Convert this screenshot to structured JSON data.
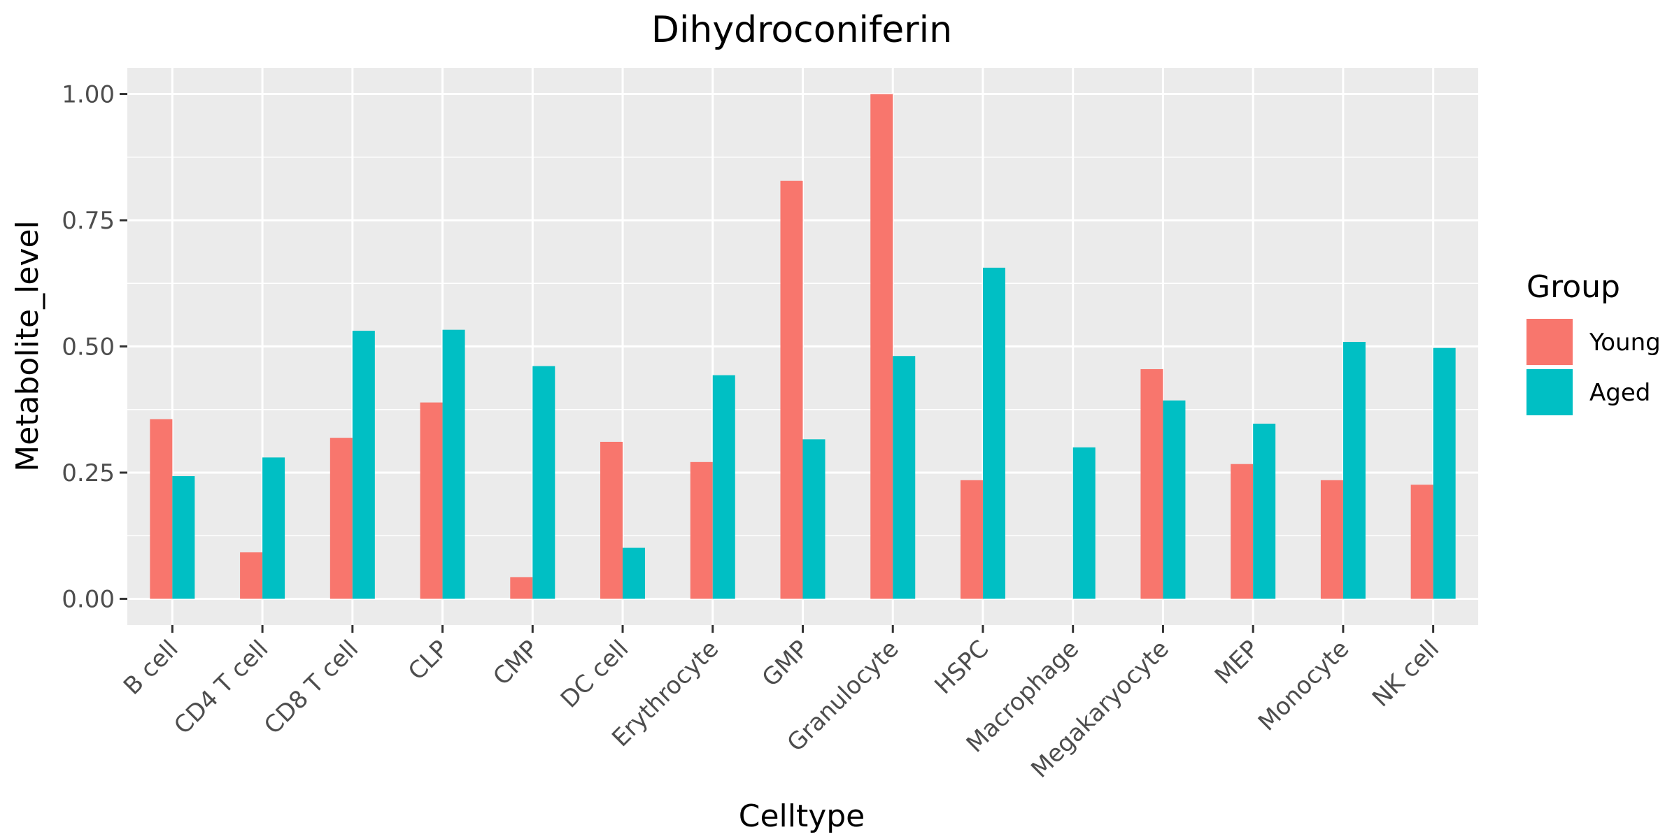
{
  "chart_data": {
    "type": "bar",
    "title": "Dihydroconiferin",
    "xlabel": "Celltype",
    "ylabel": "Metabolite_level",
    "categories": [
      "B cell",
      "CD4 T cell",
      "CD8 T cell",
      "CLP",
      "CMP",
      "DC cell",
      "Erythrocyte",
      "GMP",
      "Granulocyte",
      "HSPC",
      "Macrophage",
      "Megakaryocyte",
      "MEP",
      "Monocyte",
      "NK cell"
    ],
    "series": [
      {
        "name": "Young",
        "color": "#F8766D",
        "values": [
          0.356,
          0.092,
          0.319,
          0.389,
          0.043,
          0.311,
          0.271,
          0.828,
          1.0,
          0.235,
          0.0,
          0.455,
          0.267,
          0.235,
          0.226
        ]
      },
      {
        "name": "Aged",
        "color": "#00BFC4",
        "values": [
          0.243,
          0.28,
          0.531,
          0.533,
          0.461,
          0.101,
          0.443,
          0.316,
          0.481,
          0.656,
          0.3,
          0.393,
          0.347,
          0.509,
          0.497
        ]
      }
    ],
    "ylim": [
      -0.052,
      1.052
    ],
    "yticks": [
      0,
      0.25,
      0.5,
      0.75,
      1.0
    ],
    "ytick_labels": [
      "0.00",
      "0.25",
      "0.50",
      "0.75",
      "1.00"
    ],
    "grid": true,
    "legend": {
      "title": "Group",
      "position": "right"
    },
    "panel_color": "#EBEBEB",
    "grid_color": "#FFFFFF"
  }
}
